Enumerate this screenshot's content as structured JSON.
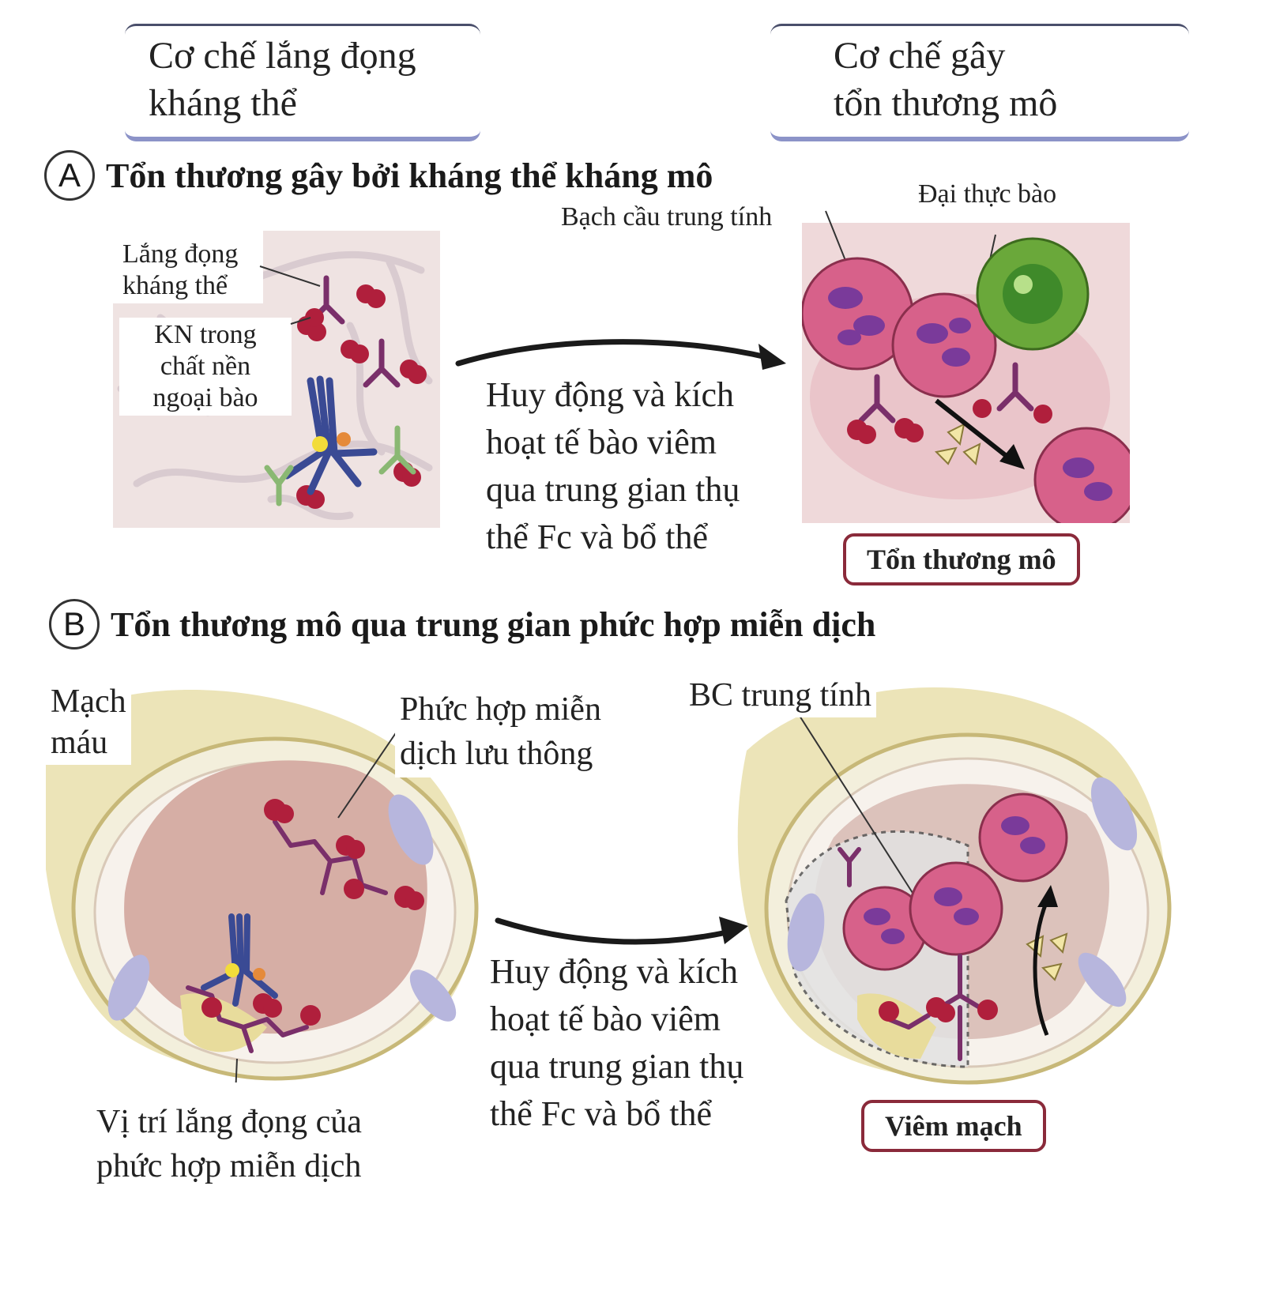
{
  "headers": {
    "left": [
      "Cơ chế lắng đọng",
      "kháng thể"
    ],
    "right": [
      "Cơ chế gây",
      "tổn thương mô"
    ]
  },
  "section_a": {
    "letter": "A",
    "title": "Tổn thương gây bởi kháng thể kháng mô",
    "label_deposit": [
      "Lắng đọng",
      "kháng thể"
    ],
    "label_antigen": [
      "KN trong",
      "chất nền",
      "ngoại bào"
    ],
    "label_neutrophil": "Bạch cầu trung tính",
    "label_macrophage": "Đại thực bào",
    "arrow_caption": [
      "Huy động và kích",
      "hoạt tế bào viêm",
      "qua trung gian thụ",
      "thể Fc và bổ thể"
    ],
    "outcome": "Tổn thương mô"
  },
  "section_b": {
    "letter": "B",
    "title": "Tổn thương mô qua trung gian phức hợp miễn dịch",
    "label_vessel": [
      "Mạch",
      "máu"
    ],
    "label_complex": [
      "Phức hợp miễn",
      "dịch lưu thông"
    ],
    "label_deposit_site": [
      "Vị trí lắng đọng của",
      "phức hợp miễn dịch"
    ],
    "label_neutrophil": "BC trung tính",
    "arrow_caption": [
      "Huy động và kích",
      "hoạt tế bào viêm",
      "qua trung gian thụ",
      "thể Fc và bổ thể"
    ],
    "outcome": "Viêm mạch"
  },
  "colors": {
    "antibody": "#7a2f6a",
    "antigen": "#b01f3c",
    "neutrophil": "#c94a7a",
    "macrophage": "#4f8f2a",
    "vessel_wall": "#ece4b8",
    "lumen": "#d9b5ac",
    "outcome_border": "#8a2a3a"
  }
}
